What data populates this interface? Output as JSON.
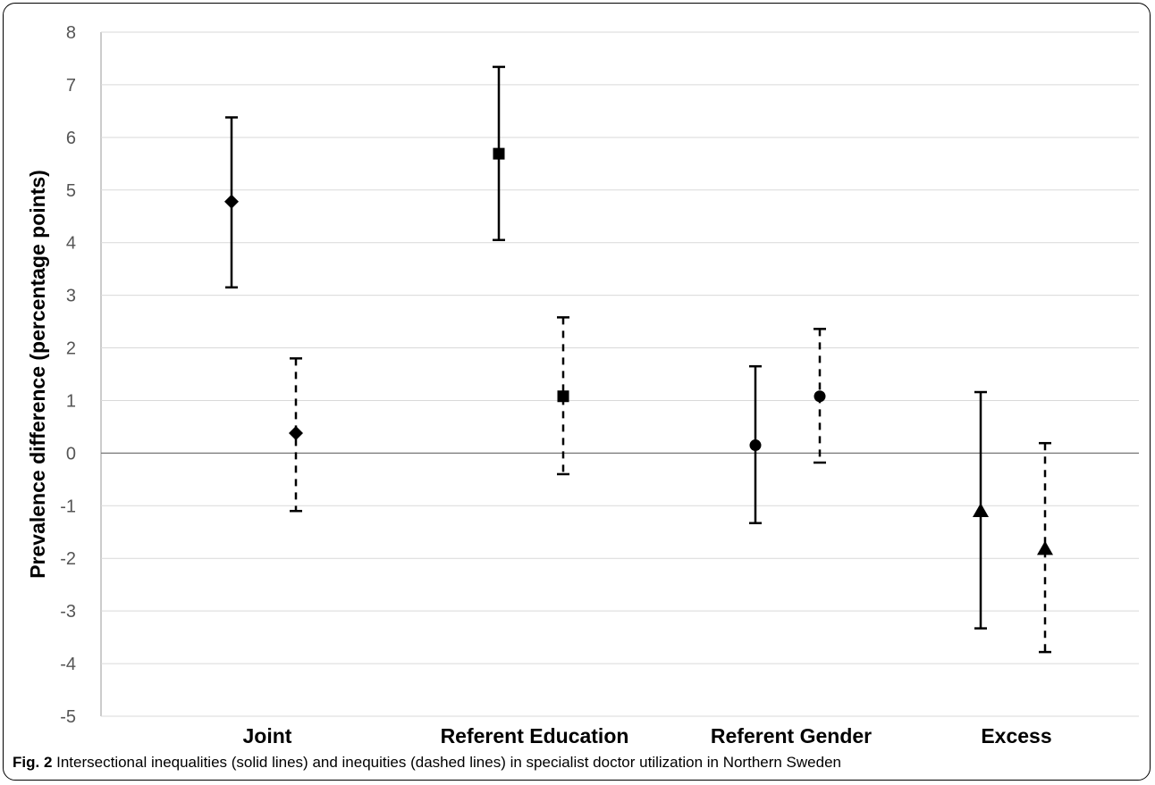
{
  "chart_data": {
    "type": "scatter",
    "title": "",
    "xlabel": "",
    "ylabel": "Prevalence difference (percentage points)",
    "ylim": [
      -5,
      8
    ],
    "yticks": [
      8,
      7,
      6,
      5,
      4,
      3,
      2,
      1,
      0,
      -1,
      -2,
      -3,
      -4,
      -5
    ],
    "categories": [
      "Joint",
      "Referent Education",
      "Referent Gender",
      "Excess"
    ],
    "grid": true,
    "series": [
      {
        "line_style": "solid",
        "points": [
          {
            "category": "Joint",
            "marker": "diamond",
            "value": 4.78,
            "lower": 3.15,
            "upper": 6.38
          },
          {
            "category": "Referent Education",
            "marker": "square",
            "value": 5.69,
            "lower": 4.05,
            "upper": 7.34
          },
          {
            "category": "Referent Gender",
            "marker": "circle",
            "value": 0.15,
            "lower": -1.33,
            "upper": 1.65
          },
          {
            "category": "Excess",
            "marker": "triangle",
            "value": -1.1,
            "lower": -3.33,
            "upper": 1.16
          }
        ]
      },
      {
        "line_style": "dashed",
        "points": [
          {
            "category": "Joint",
            "marker": "diamond",
            "value": 0.38,
            "lower": -1.1,
            "upper": 1.8
          },
          {
            "category": "Referent Education",
            "marker": "square",
            "value": 1.08,
            "lower": -0.4,
            "upper": 2.58
          },
          {
            "category": "Referent Gender",
            "marker": "circle",
            "value": 1.08,
            "lower": -0.18,
            "upper": 2.36
          },
          {
            "category": "Excess",
            "marker": "triangle",
            "value": -1.82,
            "lower": -3.78,
            "upper": 0.19
          }
        ]
      }
    ]
  },
  "caption": {
    "label": "Fig. 2",
    "text": " Intersectional inequalities (solid lines) and inequities (dashed lines) in specialist doctor utilization in Northern Sweden"
  }
}
